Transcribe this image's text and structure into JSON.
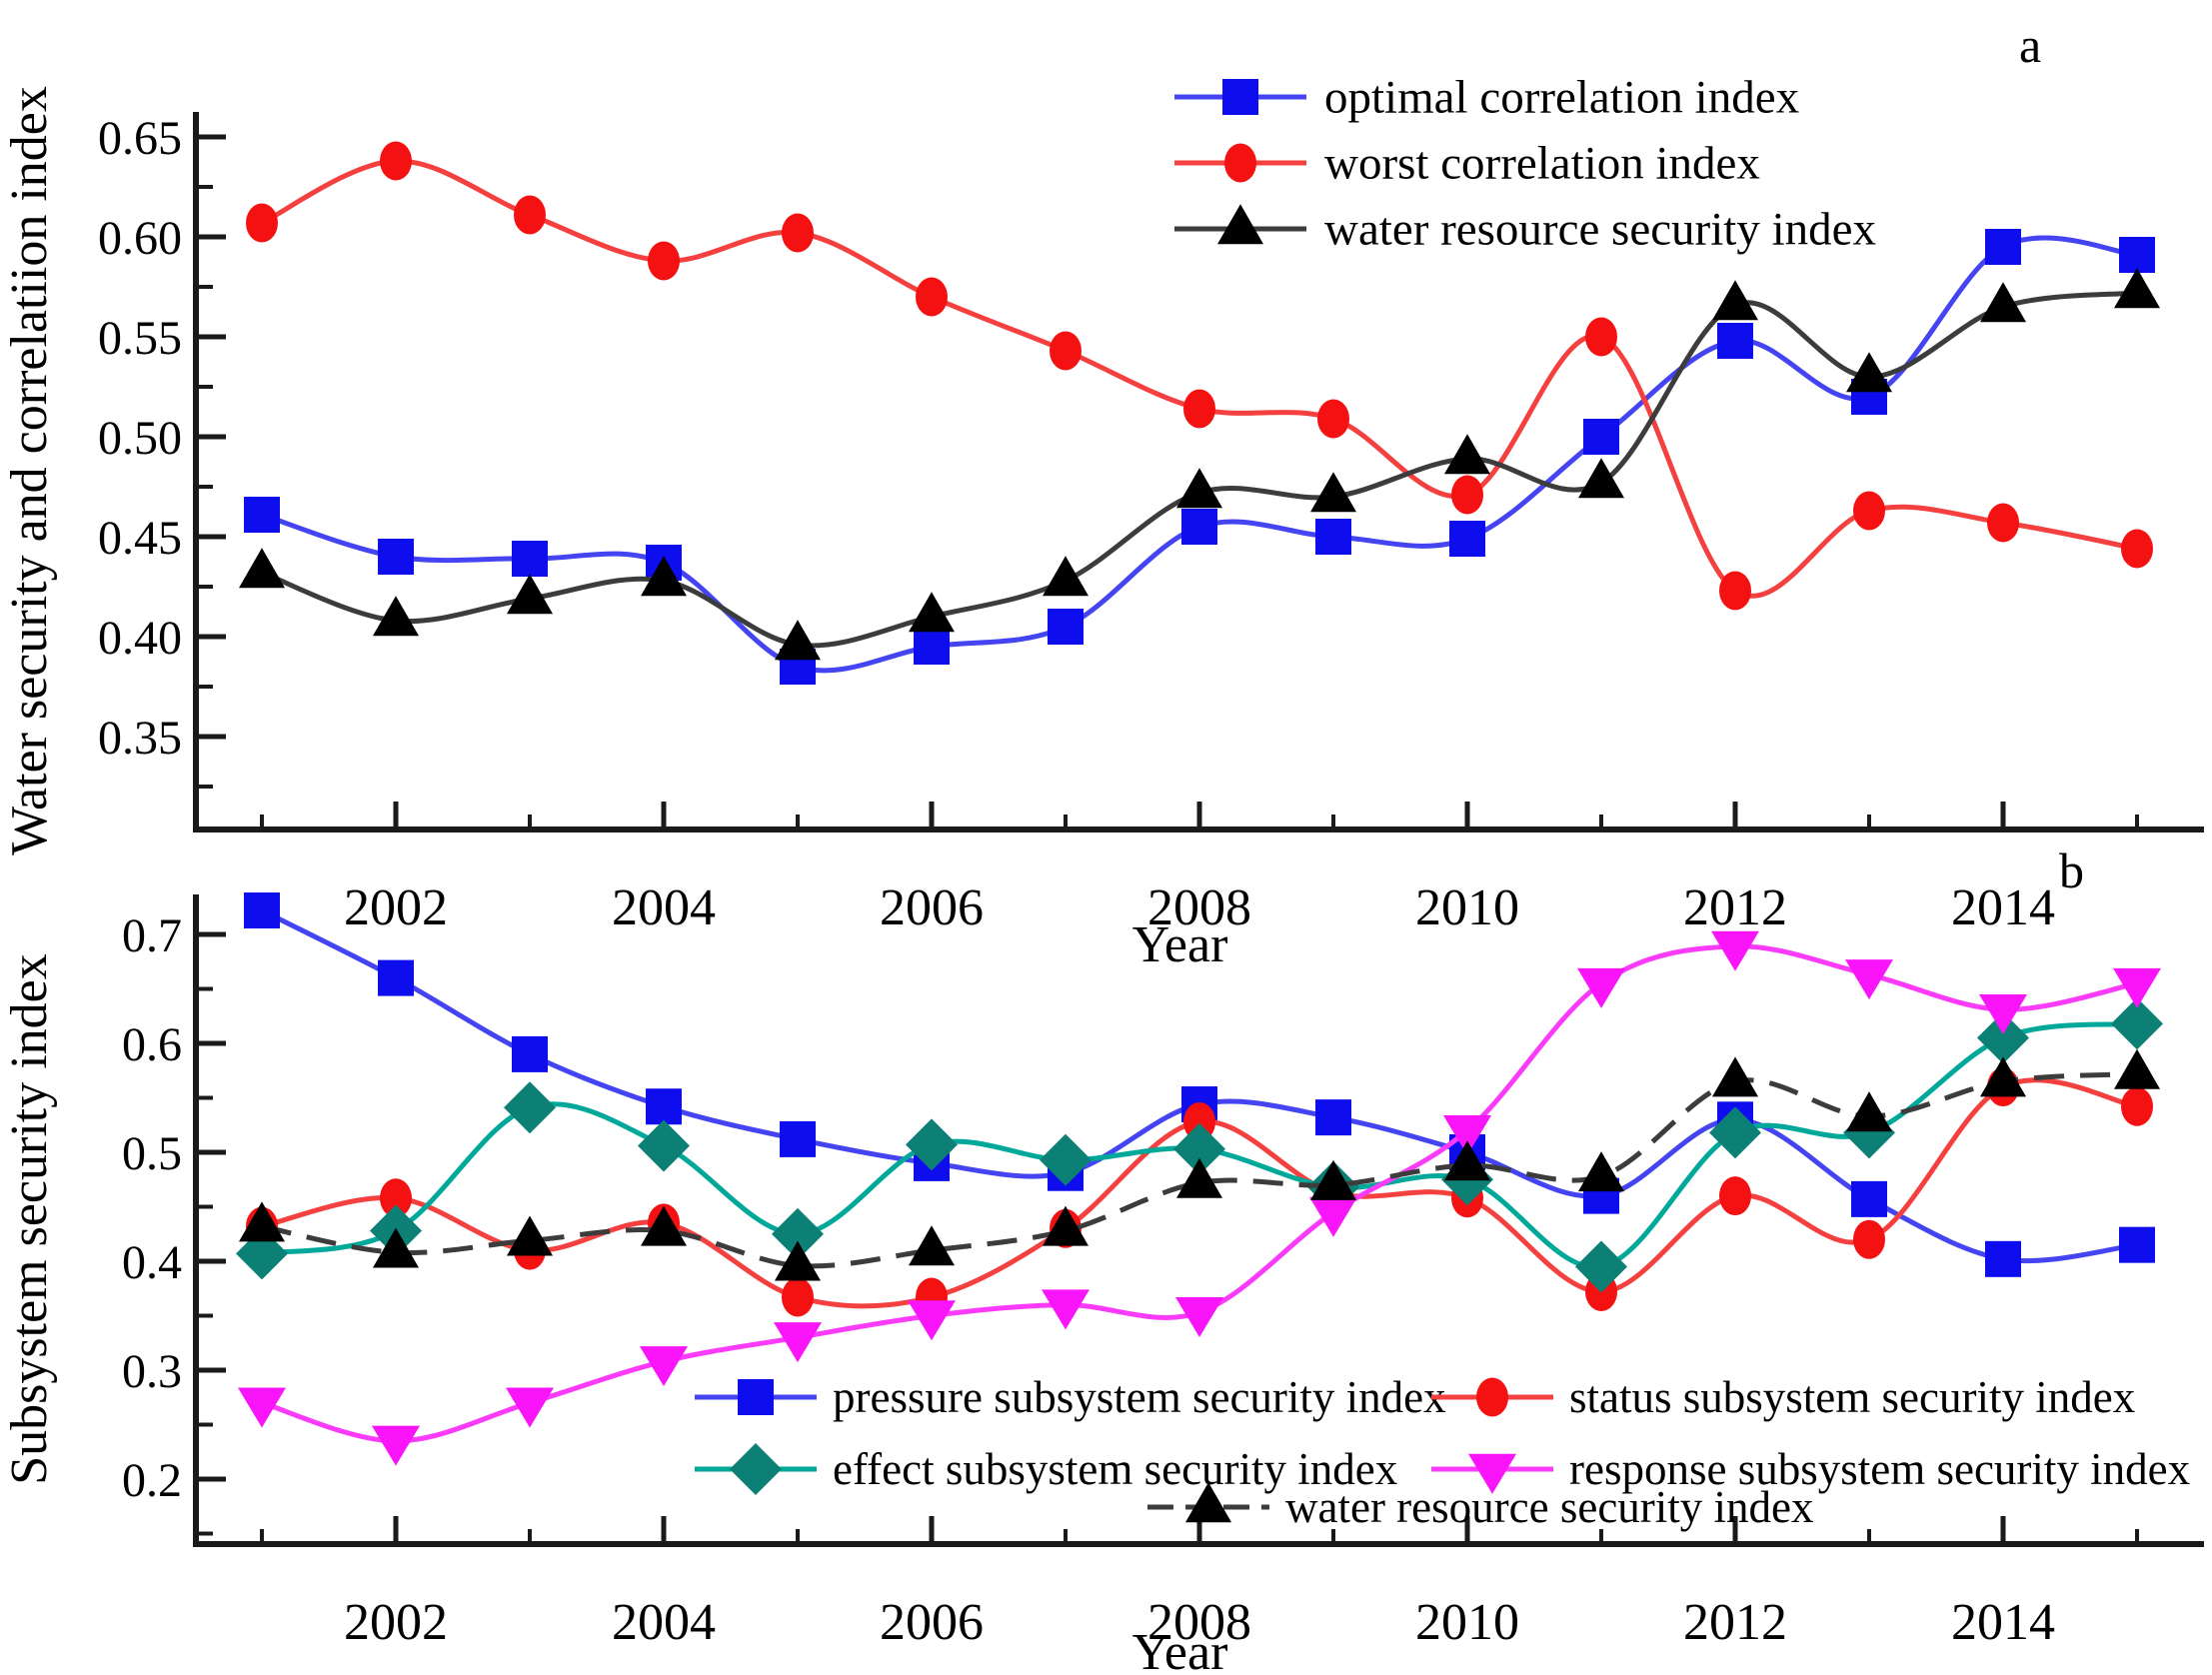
{
  "figure_title": "",
  "chart_data": [
    {
      "type": "line",
      "panel_label": "a",
      "xlabel": "Year",
      "ylabel": "Water security and correlatiion index",
      "x": [
        2001,
        2002,
        2003,
        2004,
        2005,
        2006,
        2007,
        2008,
        2009,
        2010,
        2011,
        2012,
        2013,
        2014,
        2015
      ],
      "x_tick_labels": [
        "2002",
        "2004",
        "2006",
        "2008",
        "2010",
        "2012",
        "2014"
      ],
      "x_tick_years": [
        2002,
        2004,
        2006,
        2008,
        2010,
        2012,
        2014
      ],
      "x_minor_years": [
        2001,
        2003,
        2005,
        2007,
        2009,
        2011,
        2013,
        2015
      ],
      "y_tick_labels": [
        "0.65",
        "0.60",
        "0.55",
        "0.50",
        "0.45",
        "0.40",
        "0.35"
      ],
      "y_tick_values": [
        0.65,
        0.6,
        0.55,
        0.5,
        0.45,
        0.4,
        0.35
      ],
      "y_minor_values": [
        0.625,
        0.575,
        0.525,
        0.475,
        0.425,
        0.375,
        0.325
      ],
      "ylim": [
        0.303,
        0.673
      ],
      "grid": false,
      "legend_position": "upper-right-inside",
      "series": [
        {
          "name": "optimal correlation index",
          "marker": "square",
          "color": "#0d0dee",
          "line_color": "#4444f2",
          "line_style": "solid",
          "values": [
            0.461,
            0.44,
            0.439,
            0.437,
            0.385,
            0.395,
            0.405,
            0.455,
            0.45,
            0.449,
            0.5,
            0.548,
            0.52,
            0.595,
            0.591
          ]
        },
        {
          "name": "worst correlation index",
          "marker": "circle",
          "color": "#f31111",
          "line_color": "#f54040",
          "line_style": "solid",
          "values": [
            0.607,
            0.638,
            0.611,
            0.588,
            0.602,
            0.57,
            0.543,
            0.514,
            0.509,
            0.471,
            0.55,
            0.423,
            0.463,
            0.457,
            0.444
          ]
        },
        {
          "name": "water resource security index",
          "marker": "triangle-up",
          "color": "#000000",
          "line_color": "#3c3c3c",
          "line_style": "solid",
          "values": [
            0.432,
            0.408,
            0.419,
            0.428,
            0.396,
            0.41,
            0.428,
            0.472,
            0.47,
            0.489,
            0.477,
            0.566,
            0.53,
            0.565,
            0.572
          ]
        }
      ]
    },
    {
      "type": "line",
      "panel_label": "b",
      "xlabel": "Year",
      "ylabel": "Subsystem security index",
      "x": [
        2001,
        2002,
        2003,
        2004,
        2005,
        2006,
        2007,
        2008,
        2009,
        2010,
        2011,
        2012,
        2013,
        2014,
        2015
      ],
      "x_tick_labels": [
        "2002",
        "2004",
        "2006",
        "2008",
        "2010",
        "2012",
        "2014"
      ],
      "x_tick_years": [
        2002,
        2004,
        2006,
        2008,
        2010,
        2012,
        2014
      ],
      "x_minor_years": [
        2001,
        2003,
        2005,
        2007,
        2009,
        2011,
        2013,
        2015
      ],
      "y_tick_labels": [
        "0.7",
        "0.6",
        "0.5",
        "0.4",
        "0.3",
        "0.2"
      ],
      "y_tick_values": [
        0.7,
        0.6,
        0.5,
        0.4,
        0.3,
        0.2
      ],
      "y_minor_values": [
        0.65,
        0.55,
        0.45,
        0.35,
        0.25,
        0.15
      ],
      "ylim": [
        0.14,
        0.766
      ],
      "grid": false,
      "legend_position": "lower-right-inside",
      "series": [
        {
          "name": "pressure subsystem security index",
          "marker": "square",
          "color": "#0d0dee",
          "line_color": "#4444f2",
          "line_style": "solid",
          "values": [
            0.722,
            0.66,
            0.59,
            0.542,
            0.512,
            0.49,
            0.481,
            0.544,
            0.532,
            0.5,
            0.46,
            0.53,
            0.457,
            0.402,
            0.415
          ]
        },
        {
          "name": "status subsystem security index",
          "marker": "circle",
          "color": "#f31111",
          "line_color": "#f54040",
          "line_style": "solid",
          "values": [
            0.432,
            0.458,
            0.41,
            0.435,
            0.367,
            0.367,
            0.43,
            0.528,
            0.463,
            0.458,
            0.372,
            0.46,
            0.42,
            0.56,
            0.542
          ]
        },
        {
          "name": "effect subsystem security index",
          "marker": "diamond",
          "color": "#0d8076",
          "line_color": "#00a89a",
          "line_style": "solid",
          "values": [
            0.407,
            0.428,
            0.541,
            0.506,
            0.425,
            0.507,
            0.493,
            0.503,
            0.468,
            0.475,
            0.395,
            0.518,
            0.518,
            0.605,
            0.618
          ]
        },
        {
          "name": "response subsystem security index",
          "marker": "triangle-down",
          "color": "#fa14fa",
          "line_color": "#fa3cfa",
          "line_style": "solid",
          "values": [
            0.27,
            0.235,
            0.27,
            0.308,
            0.33,
            0.35,
            0.36,
            0.353,
            0.445,
            0.52,
            0.655,
            0.689,
            0.663,
            0.631,
            0.655
          ]
        },
        {
          "name": "water resource security index",
          "marker": "triangle-up",
          "color": "#000000",
          "line_color": "#3c3c3c",
          "line_style": "dashed",
          "values": [
            0.432,
            0.408,
            0.419,
            0.428,
            0.396,
            0.41,
            0.428,
            0.472,
            0.47,
            0.488,
            0.478,
            0.565,
            0.533,
            0.565,
            0.572
          ]
        }
      ]
    }
  ]
}
